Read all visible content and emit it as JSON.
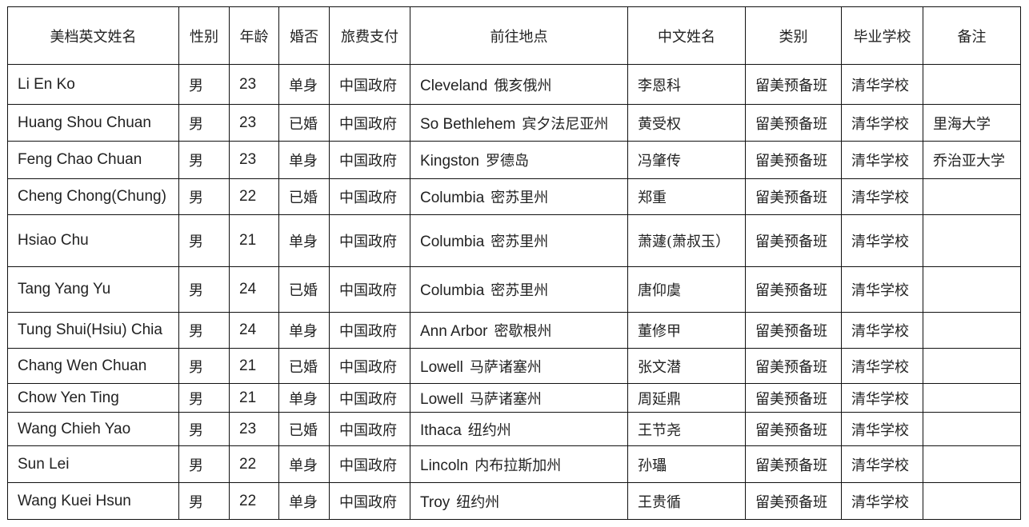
{
  "headers": [
    "美档英文姓名",
    "性别",
    "年龄",
    "婚否",
    "旅费支付",
    "前往地点",
    "中文姓名",
    "类别",
    "毕业学校",
    "备注"
  ],
  "rows": [
    {
      "en_name": "Li En Ko",
      "gender": "男",
      "age": "23",
      "marital": "单身",
      "payer": "中国政府",
      "place_en": "Cleveland",
      "place_cn": "俄亥俄州",
      "cn_name": "李恩科",
      "category": "留美预备班",
      "school": "清华学校",
      "note": ""
    },
    {
      "en_name": "Huang Shou Chuan",
      "gender": "男",
      "age": "23",
      "marital": "已婚",
      "payer": "中国政府",
      "place_en": "So Bethlehem",
      "place_cn": "宾夕法尼亚州",
      "cn_name": "黄受权",
      "category": "留美预备班",
      "school": "清华学校",
      "note": "里海大学"
    },
    {
      "en_name": "Feng Chao Chuan",
      "gender": "男",
      "age": "23",
      "marital": "单身",
      "payer": "中国政府",
      "place_en": "Kingston",
      "place_cn": "罗德岛",
      "cn_name": "冯肇传",
      "category": "留美预备班",
      "school": "清华学校",
      "note": "乔治亚大学"
    },
    {
      "en_name": "Cheng Chong(Chung)",
      "gender": "男",
      "age": "22",
      "marital": "已婚",
      "payer": "中国政府",
      "place_en": "Columbia",
      "place_cn": "密苏里州",
      "cn_name": "郑重",
      "category": "留美预备班",
      "school": "清华学校",
      "note": ""
    },
    {
      "en_name": "Hsiao Chu",
      "gender": "男",
      "age": "21",
      "marital": "单身",
      "payer": "中国政府",
      "place_en": "Columbia",
      "place_cn": "密苏里州",
      "cn_name": "萧蘧(萧叔玉）",
      "category": "留美预备班",
      "school": "清华学校",
      "note": ""
    },
    {
      "en_name": "Tang Yang Yu",
      "gender": "男",
      "age": "24",
      "marital": "已婚",
      "payer": "中国政府",
      "place_en": "Columbia",
      "place_cn": "密苏里州",
      "cn_name": "唐仰虞",
      "category": "留美预备班",
      "school": "清华学校",
      "note": ""
    },
    {
      "en_name": "Tung Shui(Hsiu) Chia",
      "gender": "男",
      "age": "24",
      "marital": "单身",
      "payer": "中国政府",
      "place_en": "Ann Arbor",
      "place_cn": "密歇根州",
      "cn_name": "董修甲",
      "category": "留美预备班",
      "school": "清华学校",
      "note": ""
    },
    {
      "en_name": "Chang Wen Chuan",
      "gender": "男",
      "age": "21",
      "marital": "已婚",
      "payer": "中国政府",
      "place_en": "Lowell",
      "place_cn": "马萨诸塞州",
      "cn_name": "张文潜",
      "category": "留美预备班",
      "school": "清华学校",
      "note": ""
    },
    {
      "en_name": "Chow Yen Ting",
      "gender": "男",
      "age": "21",
      "marital": "单身",
      "payer": "中国政府",
      "place_en": "Lowell",
      "place_cn": "马萨诸塞州",
      "cn_name": "周延鼎",
      "category": "留美预备班",
      "school": "清华学校",
      "note": ""
    },
    {
      "en_name": "Wang Chieh Yao",
      "gender": "男",
      "age": "23",
      "marital": "已婚",
      "payer": "中国政府",
      "place_en": "Ithaca",
      "place_cn": "纽约州",
      "cn_name": "王节尧",
      "category": "留美预备班",
      "school": "清华学校",
      "note": ""
    },
    {
      "en_name": "Sun Lei",
      "gender": "男",
      "age": "22",
      "marital": "单身",
      "payer": "中国政府",
      "place_en": "Lincoln",
      "place_cn": "内布拉斯加州",
      "cn_name": "孙瓃",
      "category": "留美预备班",
      "school": "清华学校",
      "note": ""
    },
    {
      "en_name": "Wang Kuei Hsun",
      "gender": "男",
      "age": "22",
      "marital": "单身",
      "payer": "中国政府",
      "place_en": "Troy",
      "place_cn": "纽约州",
      "cn_name": "王贵循",
      "category": "留美预备班",
      "school": "清华学校",
      "note": ""
    }
  ]
}
